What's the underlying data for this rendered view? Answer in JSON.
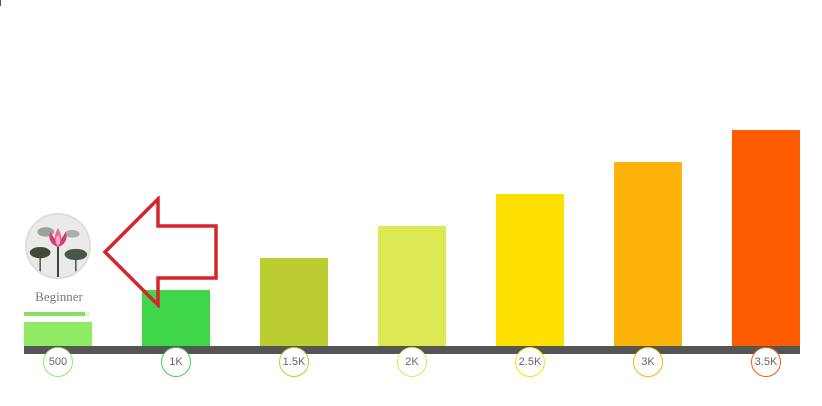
{
  "profile": {
    "avatar_icon": "lotus-flower-photo",
    "level_name": "Beginner",
    "level_progress": 0.92
  },
  "pointer": {
    "icon": "left-arrow-outline",
    "color": "#d6242c"
  },
  "tiers": [
    {
      "label": "500",
      "value": 500,
      "color": "#90ea64"
    },
    {
      "label": "1K",
      "value": 1000,
      "color": "#3fd64a"
    },
    {
      "label": "1.5K",
      "value": 1500,
      "color": "#bccd31"
    },
    {
      "label": "2K",
      "value": 2000,
      "color": "#dce952"
    },
    {
      "label": "2.5K",
      "value": 2500,
      "color": "#fde000"
    },
    {
      "label": "3K",
      "value": 3000,
      "color": "#feb30a"
    },
    {
      "label": "3.5K",
      "value": 3500,
      "color": "#fe5c00"
    }
  ],
  "chart_data": {
    "type": "bar",
    "categories": [
      "500",
      "1K",
      "1.5K",
      "2K",
      "2.5K",
      "3K",
      "3.5K"
    ],
    "values": [
      500,
      1000,
      1500,
      2000,
      2500,
      3000,
      3500
    ],
    "title": "",
    "xlabel": "",
    "ylabel": "",
    "ylim": [
      0,
      3500
    ]
  }
}
